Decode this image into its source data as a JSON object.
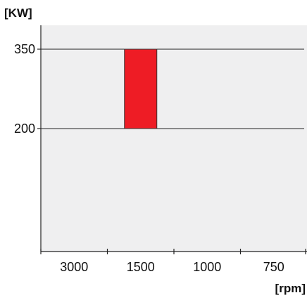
{
  "chart_data": {
    "type": "bar",
    "ylabel": "[KW]",
    "xlabel": "[rpm]",
    "categories": [
      "3000",
      "1500",
      "1000",
      "750"
    ],
    "y_ticks": [
      "350",
      "200"
    ],
    "y_tick_values": [
      350,
      200
    ],
    "bars": [
      {
        "category": "1500",
        "low": 200,
        "high": 350
      }
    ],
    "ylim": [
      0,
      390
    ],
    "grid": "horizontal lines at labeled y ticks",
    "colors": {
      "background": "#efeff0",
      "bar": "#ee1c25",
      "axis": "#222222"
    }
  }
}
